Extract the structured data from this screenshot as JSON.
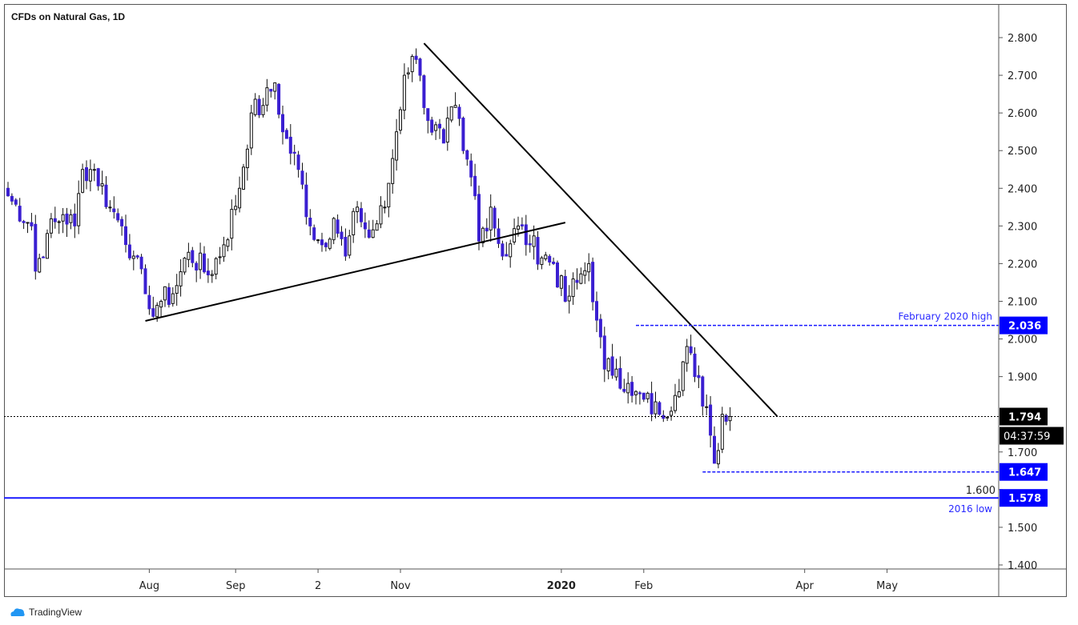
{
  "title": "CFDs on Natural Gas, 1D",
  "branding": "TradingView",
  "colors": {
    "up_fill": "#ffffff",
    "down_fill": "#3a1fd1",
    "wick": "#111111",
    "level_blue": "#1a1aff",
    "label_blue": "#0000ff",
    "trendline": "#000000"
  },
  "chart_data": {
    "type": "candlestick",
    "title": "CFDs on Natural Gas, 1D",
    "xlabel": "",
    "ylabel": "",
    "ylim": [
      1.4,
      2.8
    ],
    "y_ticks": [
      "2.800",
      "2.700",
      "2.600",
      "2.500",
      "2.400",
      "2.300",
      "2.200",
      "2.100",
      "2.000",
      "1.900",
      "1.700",
      "1.600",
      "1.500",
      "1.400"
    ],
    "x_ticks": [
      {
        "label": "Aug",
        "bar": 36
      },
      {
        "label": "Sep",
        "bar": 58
      },
      {
        "label": "2",
        "bar": 79
      },
      {
        "label": "Nov",
        "bar": 100
      },
      {
        "label": "2020",
        "bar": 141,
        "bold": true
      },
      {
        "label": "Feb",
        "bar": 162
      },
      {
        "label": "Apr",
        "bar": 203
      },
      {
        "label": "May",
        "bar": 224
      }
    ],
    "total_bars_visible": 254,
    "close_anchors": [
      [
        0,
        2.38
      ],
      [
        6,
        2.3
      ],
      [
        7,
        2.18
      ],
      [
        10,
        2.28
      ],
      [
        14,
        2.33
      ],
      [
        17,
        2.3
      ],
      [
        19,
        2.45
      ],
      [
        22,
        2.45
      ],
      [
        26,
        2.35
      ],
      [
        29,
        2.3
      ],
      [
        32,
        2.22
      ],
      [
        35,
        2.12
      ],
      [
        36,
        2.08
      ],
      [
        39,
        2.1
      ],
      [
        42,
        2.12
      ],
      [
        46,
        2.23
      ],
      [
        51,
        2.17
      ],
      [
        55,
        2.25
      ],
      [
        59,
        2.4
      ],
      [
        62,
        2.6
      ],
      [
        65,
        2.62
      ],
      [
        68,
        2.68
      ],
      [
        70,
        2.55
      ],
      [
        74,
        2.45
      ],
      [
        77,
        2.3
      ],
      [
        80,
        2.25
      ],
      [
        83,
        2.32
      ],
      [
        86,
        2.22
      ],
      [
        89,
        2.35
      ],
      [
        92,
        2.27
      ],
      [
        96,
        2.35
      ],
      [
        99,
        2.55
      ],
      [
        101,
        2.7
      ],
      [
        103,
        2.75
      ],
      [
        105,
        2.7
      ],
      [
        107,
        2.58
      ],
      [
        111,
        2.52
      ],
      [
        114,
        2.62
      ],
      [
        116,
        2.5
      ],
      [
        119,
        2.38
      ],
      [
        120,
        2.26
      ],
      [
        123,
        2.35
      ],
      [
        126,
        2.22
      ],
      [
        130,
        2.3
      ],
      [
        133,
        2.25
      ],
      [
        139,
        2.2
      ],
      [
        142,
        2.1
      ],
      [
        145,
        2.15
      ],
      [
        148,
        2.2
      ],
      [
        150,
        2.05
      ],
      [
        152,
        1.92
      ],
      [
        155,
        1.92
      ],
      [
        159,
        1.85
      ],
      [
        162,
        1.84
      ],
      [
        166,
        1.8
      ],
      [
        170,
        1.85
      ],
      [
        173,
        1.98
      ],
      [
        175,
        1.9
      ],
      [
        178,
        1.82
      ],
      [
        180,
        1.67
      ],
      [
        182,
        1.8
      ],
      [
        184,
        1.794
      ]
    ],
    "trendlines": [
      {
        "name": "descending resistance",
        "from": [
          106,
          2.785
        ],
        "to": [
          196,
          1.795
        ]
      },
      {
        "name": "ascending support",
        "from": [
          35,
          2.048
        ],
        "to": [
          142,
          2.309
        ]
      }
    ],
    "levels": [
      {
        "name": "February 2020 high",
        "value": 2.036,
        "label": "2.036",
        "note": "February 2020 high",
        "from_bar": 160,
        "style": "dashed"
      },
      {
        "name": "recent low",
        "value": 1.647,
        "label": "1.647",
        "from_bar": 177,
        "style": "dashed"
      },
      {
        "name": "2016 low",
        "value": 1.578,
        "label": "1.578",
        "note": "2016 low",
        "from_bar": -2,
        "style": "solid"
      }
    ],
    "last_price": {
      "value": 1.794,
      "label": "1.794",
      "countdown": "04:37:59"
    }
  }
}
